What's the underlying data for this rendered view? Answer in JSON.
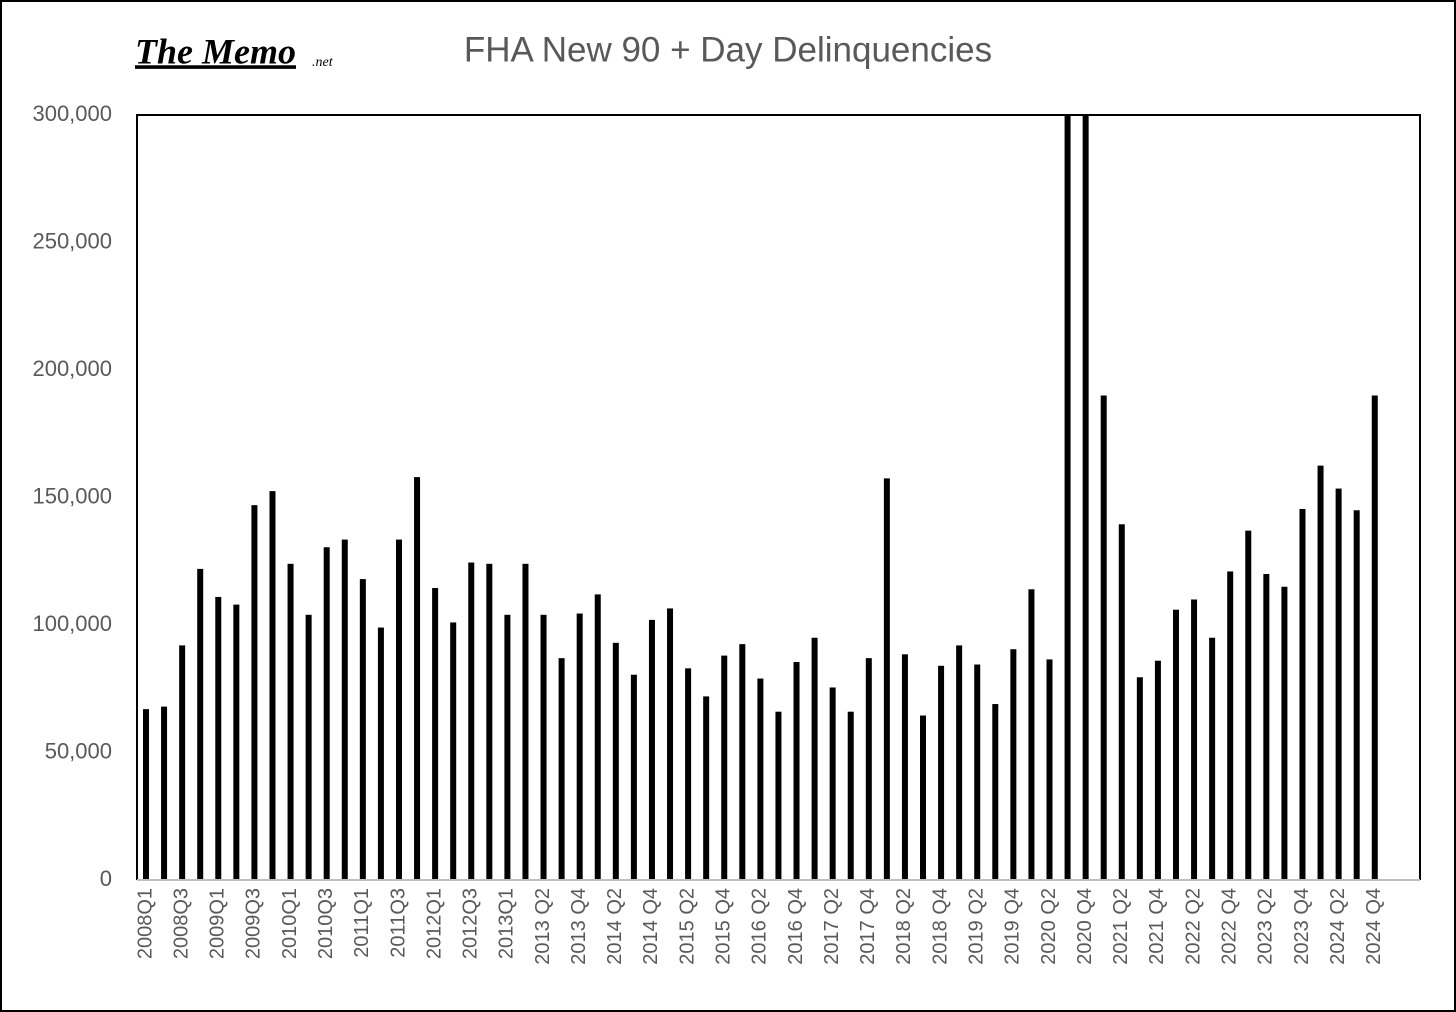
{
  "logo": {
    "name": "The Memo",
    "suffix": ".net"
  },
  "chart_data": {
    "type": "bar",
    "title": "FHA New 90 + Day Delinquencies",
    "color": "#000000",
    "categories": [
      "2008Q1",
      null,
      "2008Q3",
      null,
      "2009Q1",
      null,
      "2009Q3",
      null,
      "2010Q1",
      null,
      "2010Q3",
      null,
      "2011Q1",
      null,
      "2011Q3",
      null,
      "2012Q1",
      null,
      "2012Q3",
      null,
      "2013Q1",
      null,
      "2013 Q2",
      null,
      "2013 Q4",
      null,
      "2014 Q2",
      null,
      "2014 Q4",
      null,
      "2015 Q2",
      null,
      "2015 Q4",
      null,
      "2016 Q2",
      null,
      "2016 Q4",
      null,
      "2017 Q2",
      null,
      "2017 Q4",
      null,
      "2018 Q2",
      null,
      "2018 Q4",
      null,
      "2019 Q2",
      null,
      "2019 Q4",
      null,
      "2020 Q2",
      null,
      "2020 Q4",
      null,
      "2021 Q2",
      null,
      "2021 Q4",
      null,
      "2022 Q2",
      null,
      "2022 Q4",
      null,
      "2023 Q2",
      null,
      "2023 Q4",
      null,
      "2024 Q2",
      null,
      "2024 Q4"
    ],
    "values": [
      67000,
      68000,
      92000,
      122000,
      111000,
      108000,
      147000,
      152500,
      124000,
      104000,
      130500,
      133500,
      118000,
      99000,
      133500,
      158000,
      114500,
      101000,
      124500,
      124000,
      104000,
      124000,
      104000,
      87000,
      104500,
      112000,
      93000,
      80500,
      102000,
      106500,
      83000,
      72000,
      88000,
      92500,
      79000,
      66000,
      85500,
      95000,
      75500,
      66000,
      87000,
      157500,
      88500,
      64500,
      84000,
      92000,
      84500,
      69000,
      90500,
      114000,
      86500,
      300000,
      300000,
      190000,
      139500,
      79500,
      86000,
      106000,
      110000,
      95000,
      121000,
      137000,
      120000,
      115000,
      145500,
      162500,
      153500,
      145000,
      190000
    ],
    "ylim": [
      0,
      300000
    ],
    "yticks": [
      0,
      {
        "value": 50000,
        "label": "50,000"
      },
      {
        "value": 100000,
        "label": "100,000"
      },
      {
        "value": 150000,
        "label": "150,000"
      },
      {
        "value": 200000,
        "label": "200,000"
      },
      {
        "value": 250000,
        "label": "250,000"
      },
      {
        "value": 300000,
        "label": "300,000"
      }
    ],
    "grid": false
  }
}
